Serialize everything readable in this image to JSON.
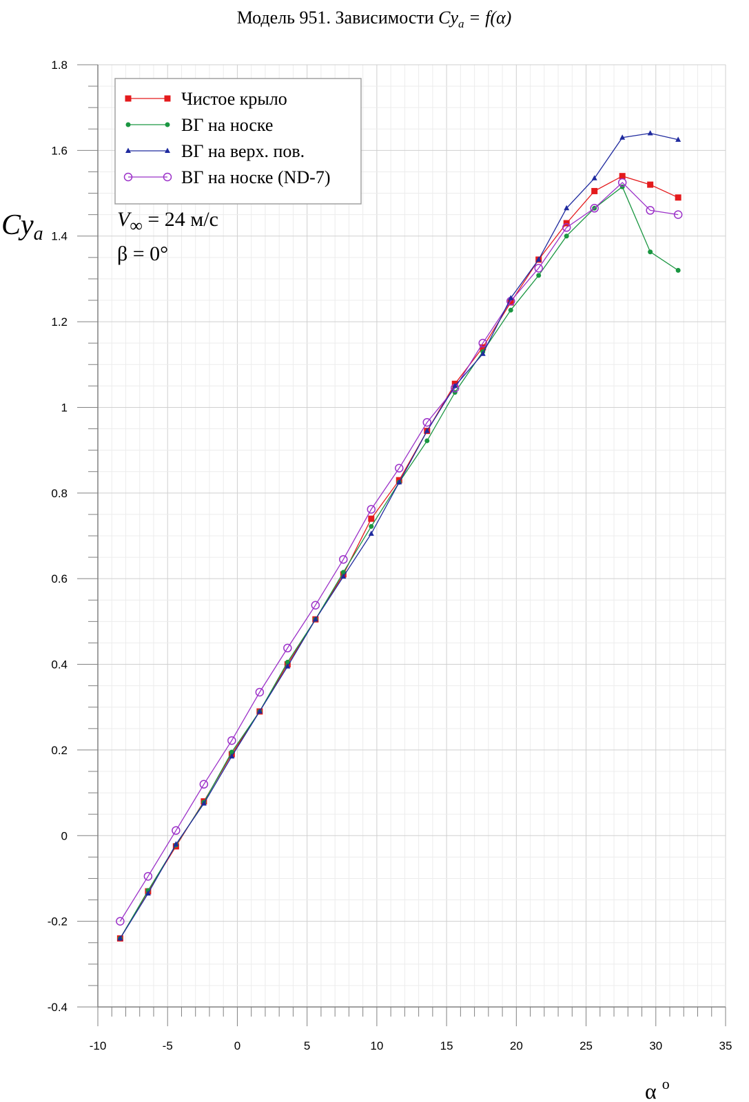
{
  "title": {
    "prefix": "Модель 951. Зависимости ",
    "var": "Cy",
    "sub": "a",
    "suffix": " = f(α)"
  },
  "axis_labels": {
    "y_var": "Cy",
    "y_sub": "a",
    "x_var": "α",
    "x_sup": "o"
  },
  "annotations": {
    "velocity_symbol": "V",
    "velocity_sub": "∞",
    "velocity_value": " = 24 м/с",
    "beta": "β = 0°"
  },
  "colors": {
    "clean_wing": "#e41a1c",
    "vg_nose": "#1a9641",
    "vg_upper": "#1f2a9e",
    "vg_nose_nd7": "#9b30c8",
    "grid": "#d9d9d9",
    "axis": "#808080"
  },
  "chart_data": {
    "type": "line",
    "xlim": [
      -10,
      35
    ],
    "ylim": [
      -0.4,
      1.8
    ],
    "x_ticks": [
      -10,
      -5,
      0,
      5,
      10,
      15,
      20,
      25,
      30,
      35
    ],
    "x_tick_labels": [
      "-10",
      "-5",
      "0",
      "5",
      "10",
      "15",
      "20",
      "25",
      "30",
      "35"
    ],
    "y_ticks": [
      -0.4,
      -0.2,
      0,
      0.2,
      0.4,
      0.6,
      0.8,
      1,
      1.2,
      1.4,
      1.6,
      1.8
    ],
    "y_tick_labels": [
      "-0.4",
      "-0.2",
      "0",
      "0.2",
      "0.4",
      "0.6",
      "0.8",
      "1",
      "1.2",
      "1.4",
      "1.6",
      "1.8"
    ],
    "grid": true,
    "legend_position": "top-left",
    "series": [
      {
        "name": "Чистое крыло",
        "color": "#e41a1c",
        "marker": "square",
        "x": [
          -8.4,
          -6.4,
          -4.4,
          -2.4,
          -0.4,
          1.6,
          3.6,
          5.6,
          7.6,
          9.6,
          11.6,
          13.6,
          15.6,
          17.6,
          19.6,
          21.6,
          23.6,
          25.6,
          27.6,
          29.6,
          31.6
        ],
        "y": [
          -0.24,
          -0.13,
          -0.025,
          0.08,
          0.19,
          0.29,
          0.4,
          0.505,
          0.61,
          0.74,
          0.83,
          0.945,
          1.055,
          1.14,
          1.245,
          1.345,
          1.43,
          1.505,
          1.54,
          1.52,
          1.49
        ]
      },
      {
        "name": "ВГ на носке",
        "color": "#1a9641",
        "marker": "circle-filled",
        "x": [
          -8.4,
          -6.4,
          -4.4,
          -2.4,
          -0.4,
          1.6,
          3.6,
          5.6,
          7.6,
          9.6,
          11.6,
          13.6,
          15.6,
          17.6,
          19.6,
          21.6,
          23.6,
          25.6,
          27.6,
          29.6,
          31.6
        ],
        "y": [
          -0.24,
          -0.128,
          -0.022,
          0.078,
          0.195,
          0.29,
          0.405,
          0.505,
          0.615,
          0.722,
          0.825,
          0.922,
          1.035,
          1.13,
          1.227,
          1.308,
          1.4,
          1.465,
          1.515,
          1.363,
          1.32
        ]
      },
      {
        "name": "ВГ на верх. пов.",
        "color": "#1f2a9e",
        "marker": "triangle",
        "x": [
          -8.4,
          -6.4,
          -4.4,
          -2.4,
          -0.4,
          1.6,
          3.6,
          5.6,
          7.6,
          9.6,
          11.6,
          13.6,
          15.6,
          17.6,
          19.6,
          21.6,
          23.6,
          25.6,
          27.6,
          29.6,
          31.6
        ],
        "y": [
          -0.24,
          -0.135,
          -0.02,
          0.075,
          0.185,
          0.29,
          0.395,
          0.505,
          0.605,
          0.705,
          0.825,
          0.945,
          1.05,
          1.125,
          1.255,
          1.345,
          1.465,
          1.535,
          1.63,
          1.64,
          1.625
        ]
      },
      {
        "name": "ВГ на носке (ND-7)",
        "color": "#9b30c8",
        "marker": "circle-open",
        "x": [
          -8.4,
          -6.4,
          -4.4,
          -2.4,
          -0.4,
          1.6,
          3.6,
          5.6,
          7.6,
          9.6,
          11.6,
          13.6,
          15.6,
          17.6,
          19.6,
          21.6,
          23.6,
          25.6,
          27.6,
          29.6,
          31.6
        ],
        "y": [
          -0.2,
          -0.095,
          0.012,
          0.12,
          0.222,
          0.335,
          0.438,
          0.538,
          0.645,
          0.762,
          0.858,
          0.965,
          1.045,
          1.15,
          1.248,
          1.325,
          1.42,
          1.465,
          1.525,
          1.46,
          1.45
        ]
      }
    ]
  }
}
